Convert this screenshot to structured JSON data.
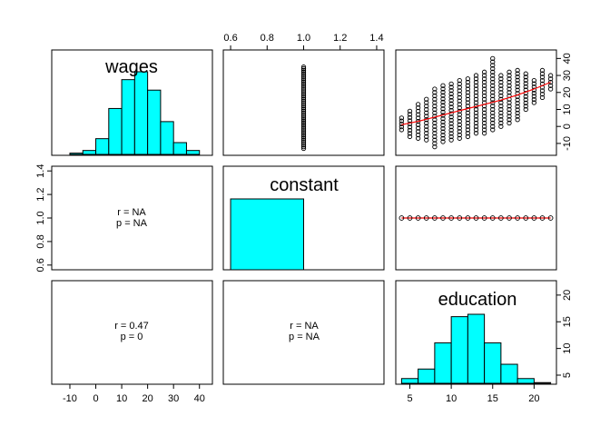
{
  "chart_data": {
    "type": "scatterplot-matrix",
    "variables": [
      "wages",
      "constant",
      "education"
    ],
    "colors": {
      "hist_fill": "#00FFFF",
      "loess": "#FF0000",
      "points": "#000000"
    },
    "wages_hist": {
      "bins": [
        -10,
        -5,
        0,
        5,
        10,
        15,
        20,
        25,
        30,
        35,
        40
      ],
      "counts": [
        1,
        3,
        12,
        35,
        57,
        63,
        49,
        25,
        9,
        3
      ],
      "xlim": [
        -17,
        45
      ]
    },
    "wages_axis": {
      "ticks": [
        -10,
        0,
        10,
        20,
        30,
        40
      ],
      "tick_labels": [
        "-10",
        "0",
        "10",
        "20",
        "30",
        "40"
      ],
      "lim": [
        -17,
        45
      ]
    },
    "wages_y_axis": {
      "ticks": [
        -10,
        0,
        10,
        20,
        30,
        40
      ],
      "tick_labels": [
        "-10",
        "0",
        "10",
        "20",
        "30",
        "40"
      ],
      "lim": [
        -17,
        45
      ]
    },
    "constant_axis": {
      "ticks": [
        0.6,
        0.8,
        1.0,
        1.2,
        1.4
      ],
      "tick_labels": [
        "0.6",
        "0.8",
        "1.0",
        "1.2",
        "1.4"
      ],
      "lim": [
        0.56,
        1.44
      ]
    },
    "constant_hist": {
      "bins": [
        0.6,
        1.0
      ],
      "density": 1.15,
      "xlim": [
        0.56,
        1.44
      ]
    },
    "education_hist": {
      "bins": [
        4,
        6,
        8,
        10,
        12,
        14,
        16,
        18,
        20,
        22
      ],
      "counts": [
        2,
        6,
        17,
        28,
        29,
        17,
        8,
        2,
        0.3
      ],
      "xlim": [
        3.3,
        22.7
      ]
    },
    "education_axis": {
      "ticks": [
        5,
        10,
        15,
        20
      ],
      "tick_labels": [
        "5",
        "10",
        "15",
        "20"
      ],
      "lim": [
        3.3,
        22.7
      ]
    },
    "wages_vs_constant_range": [
      -13,
      35
    ],
    "scatter_wages_education": {
      "x_values": [
        4,
        5,
        6,
        7,
        8,
        9,
        10,
        11,
        12,
        13,
        14,
        15,
        16,
        17,
        18,
        19,
        20,
        21,
        22
      ],
      "y_ranges": [
        [
          -2,
          5
        ],
        [
          -6,
          9
        ],
        [
          -7,
          13
        ],
        [
          -8,
          16
        ],
        [
          -12,
          22
        ],
        [
          -9,
          24
        ],
        [
          -8,
          25
        ],
        [
          -7,
          27
        ],
        [
          -6,
          28
        ],
        [
          -4,
          30
        ],
        [
          -4,
          32
        ],
        [
          -2,
          40
        ],
        [
          0,
          30
        ],
        [
          2,
          32
        ],
        [
          4,
          33
        ],
        [
          10,
          31
        ],
        [
          14,
          27
        ],
        [
          17,
          33
        ],
        [
          22,
          30
        ]
      ],
      "loess": [
        [
          4,
          1
        ],
        [
          6,
          3
        ],
        [
          8,
          5.5
        ],
        [
          10,
          8
        ],
        [
          12,
          10.5
        ],
        [
          14,
          13
        ],
        [
          16,
          15.5
        ],
        [
          18,
          18.5
        ],
        [
          20,
          22
        ],
        [
          22,
          26
        ]
      ]
    },
    "scatter_constant_education": {
      "x_values": [
        4,
        5,
        6,
        7,
        8,
        9,
        10,
        11,
        12,
        13,
        14,
        15,
        16,
        17,
        18,
        19,
        20,
        21,
        22
      ],
      "y_value": 1.0
    },
    "correlations": {
      "wages_constant": {
        "r": "r = NA",
        "p": "p = NA"
      },
      "wages_education": {
        "r": "r = 0.47",
        "p": "p = 0"
      },
      "constant_education": {
        "r": "r = NA",
        "p": "p = NA"
      }
    }
  }
}
